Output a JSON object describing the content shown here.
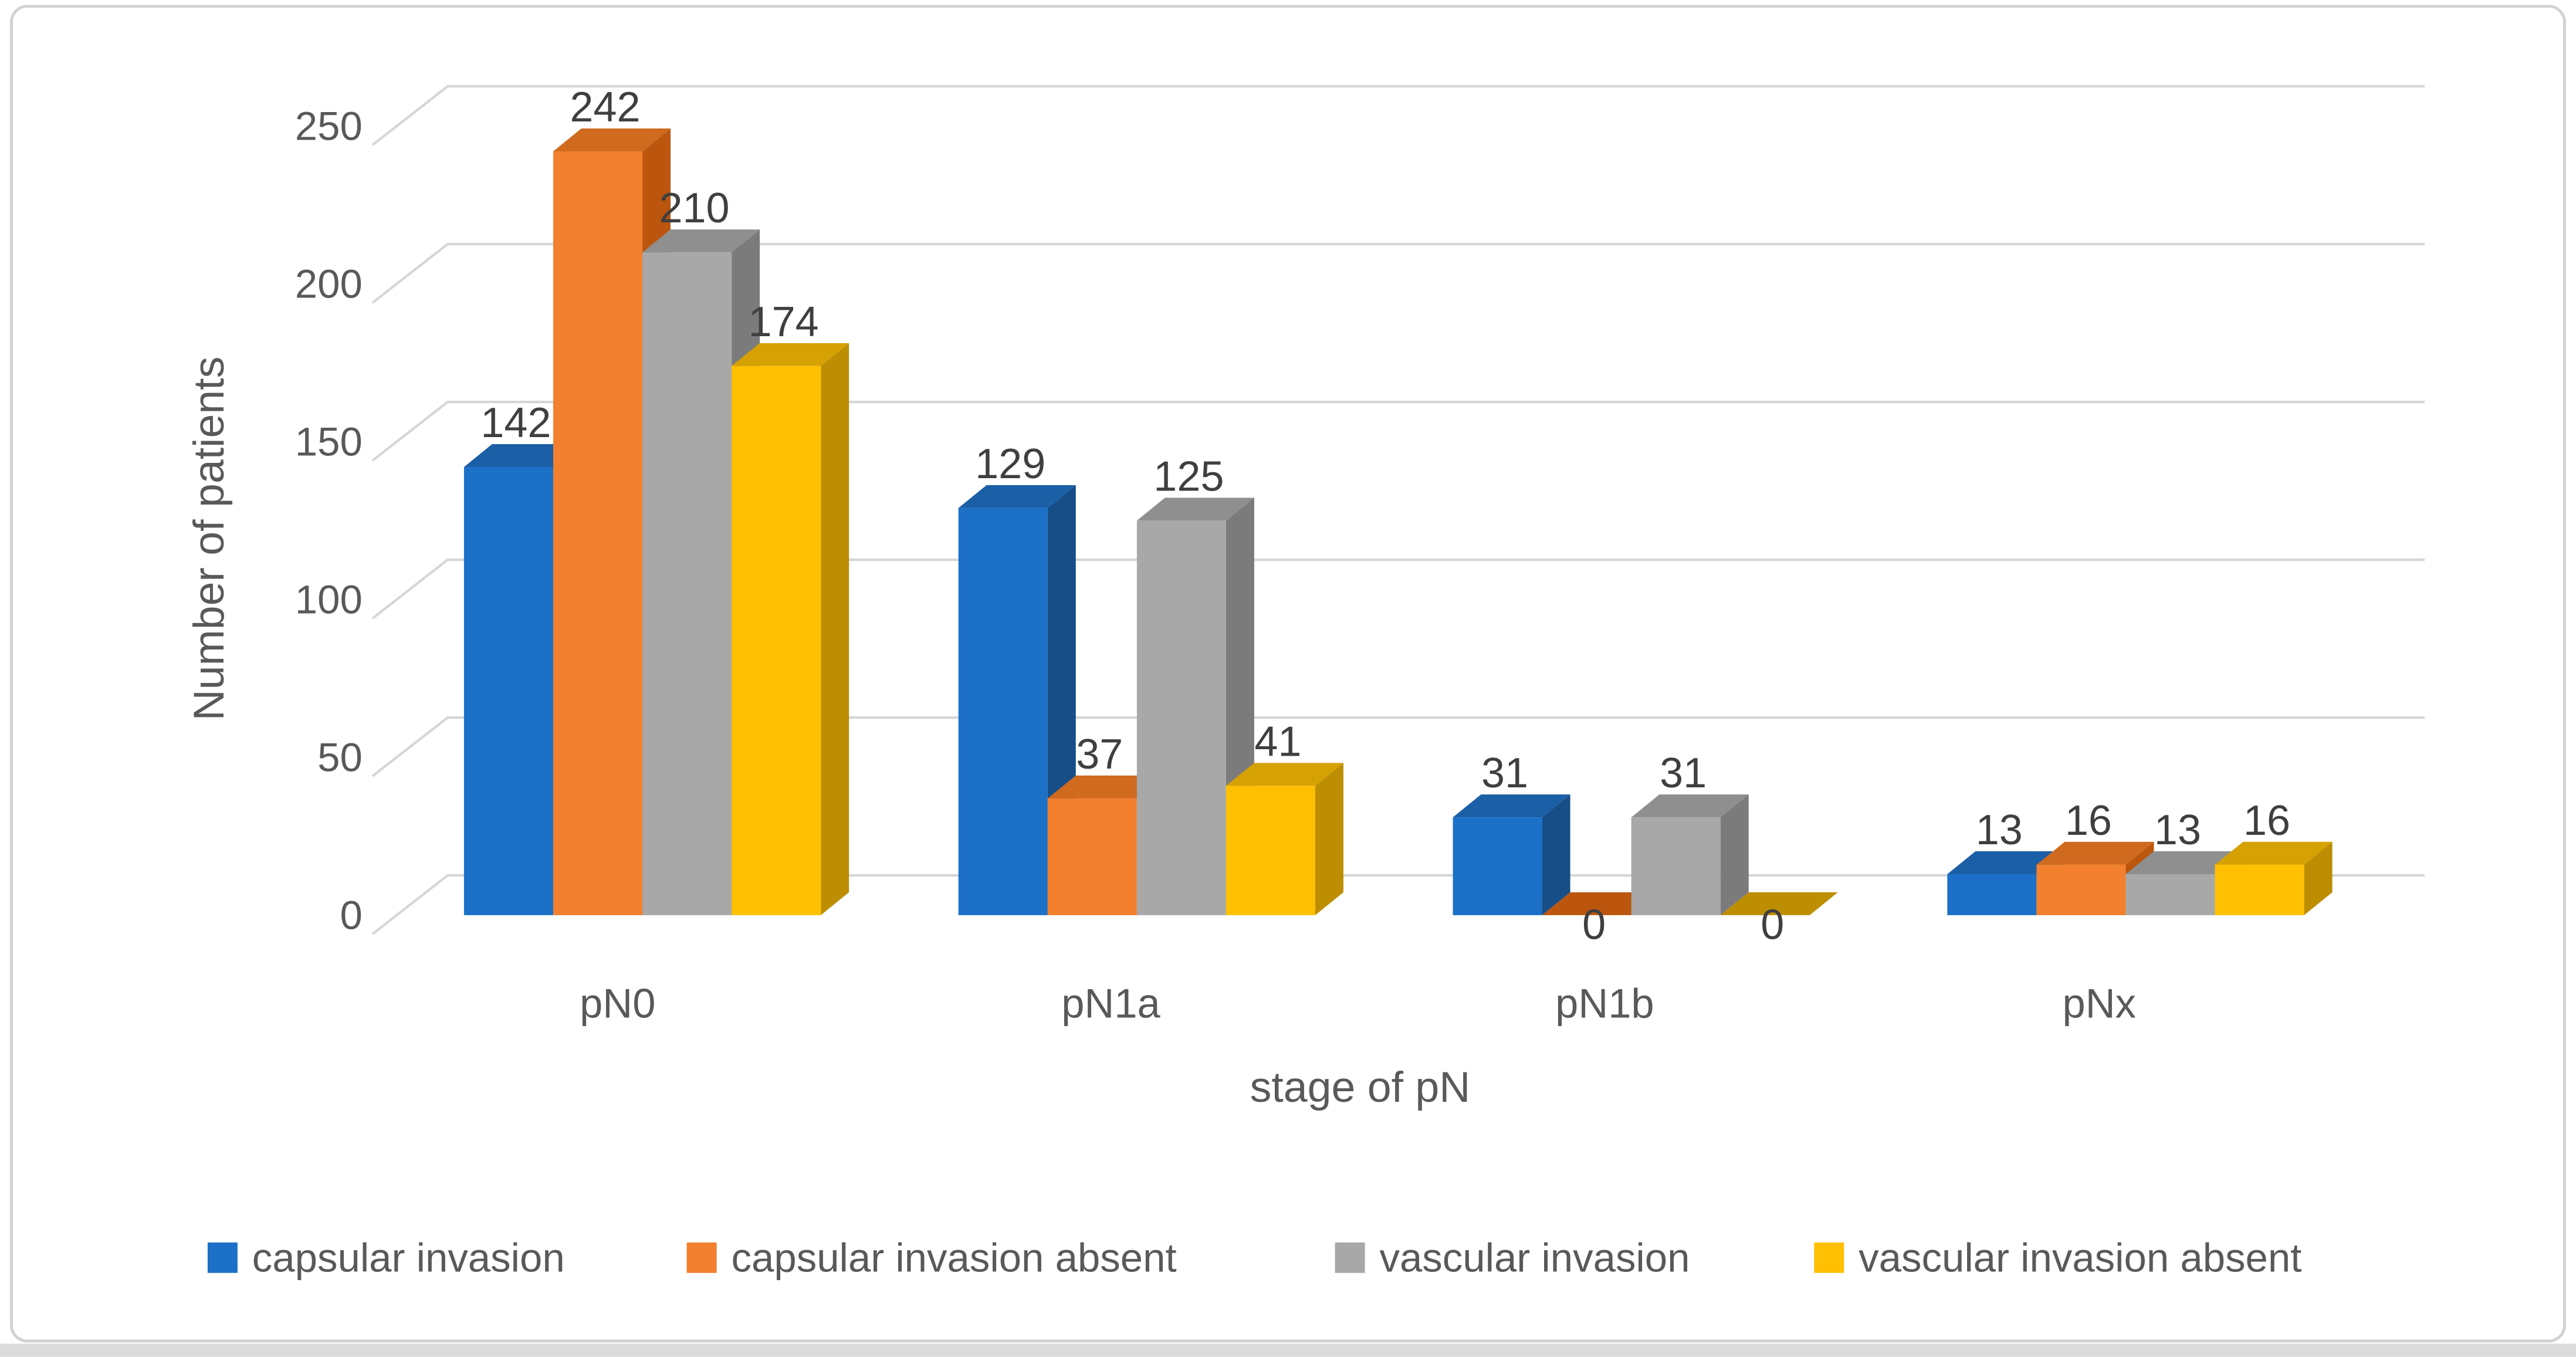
{
  "chart_data": {
    "type": "bar",
    "projection": "3d-clustered-column",
    "title": "",
    "categories": [
      "pN0",
      "pN1a",
      "pN1b",
      "pNx"
    ],
    "series": [
      {
        "name": "capsular invasion",
        "values": [
          142,
          129,
          31,
          13
        ],
        "colors": {
          "face": "#1C70C7",
          "top": "#1B5FA6",
          "side": "#174E88"
        }
      },
      {
        "name": "capsular invasion absent",
        "values": [
          242,
          37,
          0,
          16
        ],
        "colors": {
          "face": "#F2802E",
          "top": "#CF6A1F",
          "side": "#BC560E"
        }
      },
      {
        "name": "vascular invasion",
        "values": [
          210,
          125,
          31,
          13
        ],
        "colors": {
          "face": "#A8A8A8",
          "top": "#8F8F8F",
          "side": "#7B7B7B"
        }
      },
      {
        "name": "vascular invasion absent",
        "values": [
          174,
          41,
          0,
          16
        ],
        "colors": {
          "face": "#FFC003",
          "top": "#D6A103",
          "side": "#BD8E02"
        }
      }
    ],
    "xlabel": "stage of pN",
    "ylabel": "Number of patients",
    "yticks": [
      0,
      50,
      100,
      150,
      200,
      250
    ],
    "ylim": [
      0,
      250
    ],
    "grid": true,
    "data_labels": true,
    "legend_position": "bottom",
    "text_color": "#595959",
    "value_label_color": "#3F3F3F",
    "gridline_color": "#D6D6D6",
    "frame_border_color": "#D2D0D0",
    "bottom_strip_color": "#DBDBDB",
    "background_color": "#FFFFFF"
  }
}
